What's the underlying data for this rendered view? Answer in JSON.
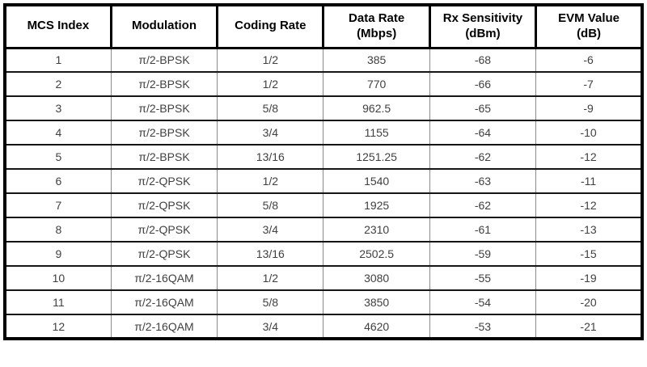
{
  "table": {
    "headers": [
      {
        "label": "MCS Index"
      },
      {
        "label": "Modulation"
      },
      {
        "label": "Coding Rate"
      },
      {
        "label": "Data Rate",
        "unit": "(Mbps)"
      },
      {
        "label": "Rx Sensitivity",
        "unit": "(dBm)"
      },
      {
        "label": "EVM Value",
        "unit": "(dB)"
      }
    ],
    "rows": [
      [
        "1",
        "π/2-BPSK",
        "1/2",
        "385",
        "-68",
        "-6"
      ],
      [
        "2",
        "π/2-BPSK",
        "1/2",
        "770",
        "-66",
        "-7"
      ],
      [
        "3",
        "π/2-BPSK",
        "5/8",
        "962.5",
        "-65",
        "-9"
      ],
      [
        "4",
        "π/2-BPSK",
        "3/4",
        "1155",
        "-64",
        "-10"
      ],
      [
        "5",
        "π/2-BPSK",
        "13/16",
        "1251.25",
        "-62",
        "-12"
      ],
      [
        "6",
        "π/2-QPSK",
        "1/2",
        "1540",
        "-63",
        "-11"
      ],
      [
        "7",
        "π/2-QPSK",
        "5/8",
        "1925",
        "-62",
        "-12"
      ],
      [
        "8",
        "π/2-QPSK",
        "3/4",
        "2310",
        "-61",
        "-13"
      ],
      [
        "9",
        "π/2-QPSK",
        "13/16",
        "2502.5",
        "-59",
        "-15"
      ],
      [
        "10",
        "π/2-16QAM",
        "1/2",
        "3080",
        "-55",
        "-19"
      ],
      [
        "11",
        "π/2-16QAM",
        "5/8",
        "3850",
        "-54",
        "-20"
      ],
      [
        "12",
        "π/2-16QAM",
        "3/4",
        "4620",
        "-53",
        "-21"
      ]
    ]
  }
}
